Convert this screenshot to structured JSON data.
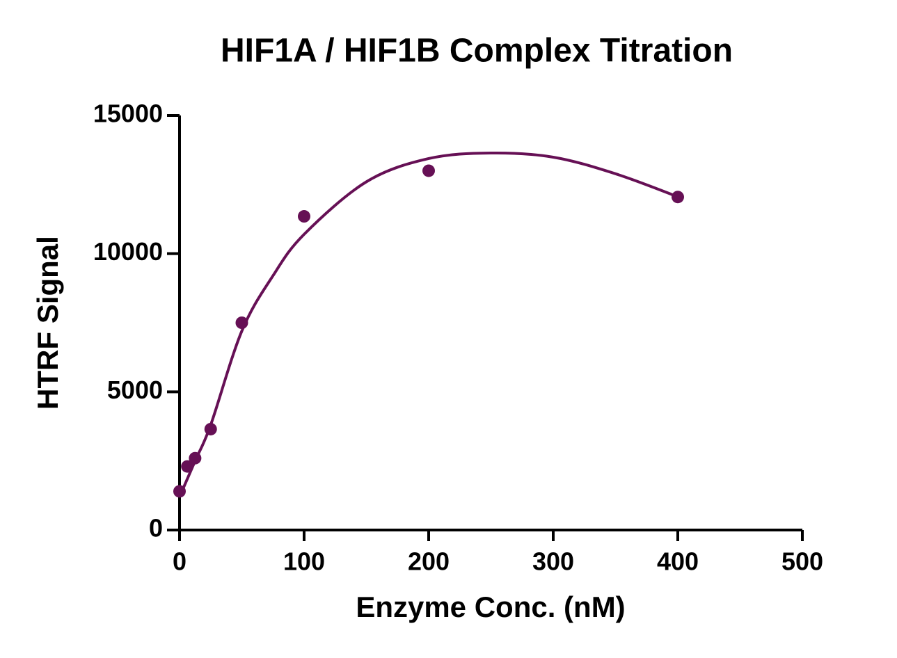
{
  "chart_data": {
    "type": "scatter",
    "title": "HIF1A / HIF1B Complex Titration",
    "x_label": "Enzyme Conc. (nM)",
    "y_label": "HTRF Signal",
    "xlim": [
      0,
      500
    ],
    "xticks": [
      0,
      100,
      200,
      300,
      400,
      500
    ],
    "ylim": [
      0,
      15000
    ],
    "yticks": [
      0,
      5000,
      10000,
      15000
    ],
    "grid": false,
    "series": [
      {
        "type": "scatter",
        "color": "#661055",
        "x": [
          0,
          6.25,
          12.5,
          25,
          50,
          100,
          200,
          400
        ],
        "values": [
          1400,
          2300,
          2600,
          3650,
          7500,
          11350,
          13000,
          12050
        ]
      },
      {
        "type": "line",
        "color": "#661055",
        "x": [
          0,
          12.5,
          25,
          50,
          75,
          100,
          150,
          200,
          250,
          300,
          350,
          400
        ],
        "values": [
          1200,
          2500,
          3800,
          7200,
          9200,
          10700,
          12600,
          13440,
          13640,
          13490,
          12890,
          12060
        ]
      }
    ]
  }
}
